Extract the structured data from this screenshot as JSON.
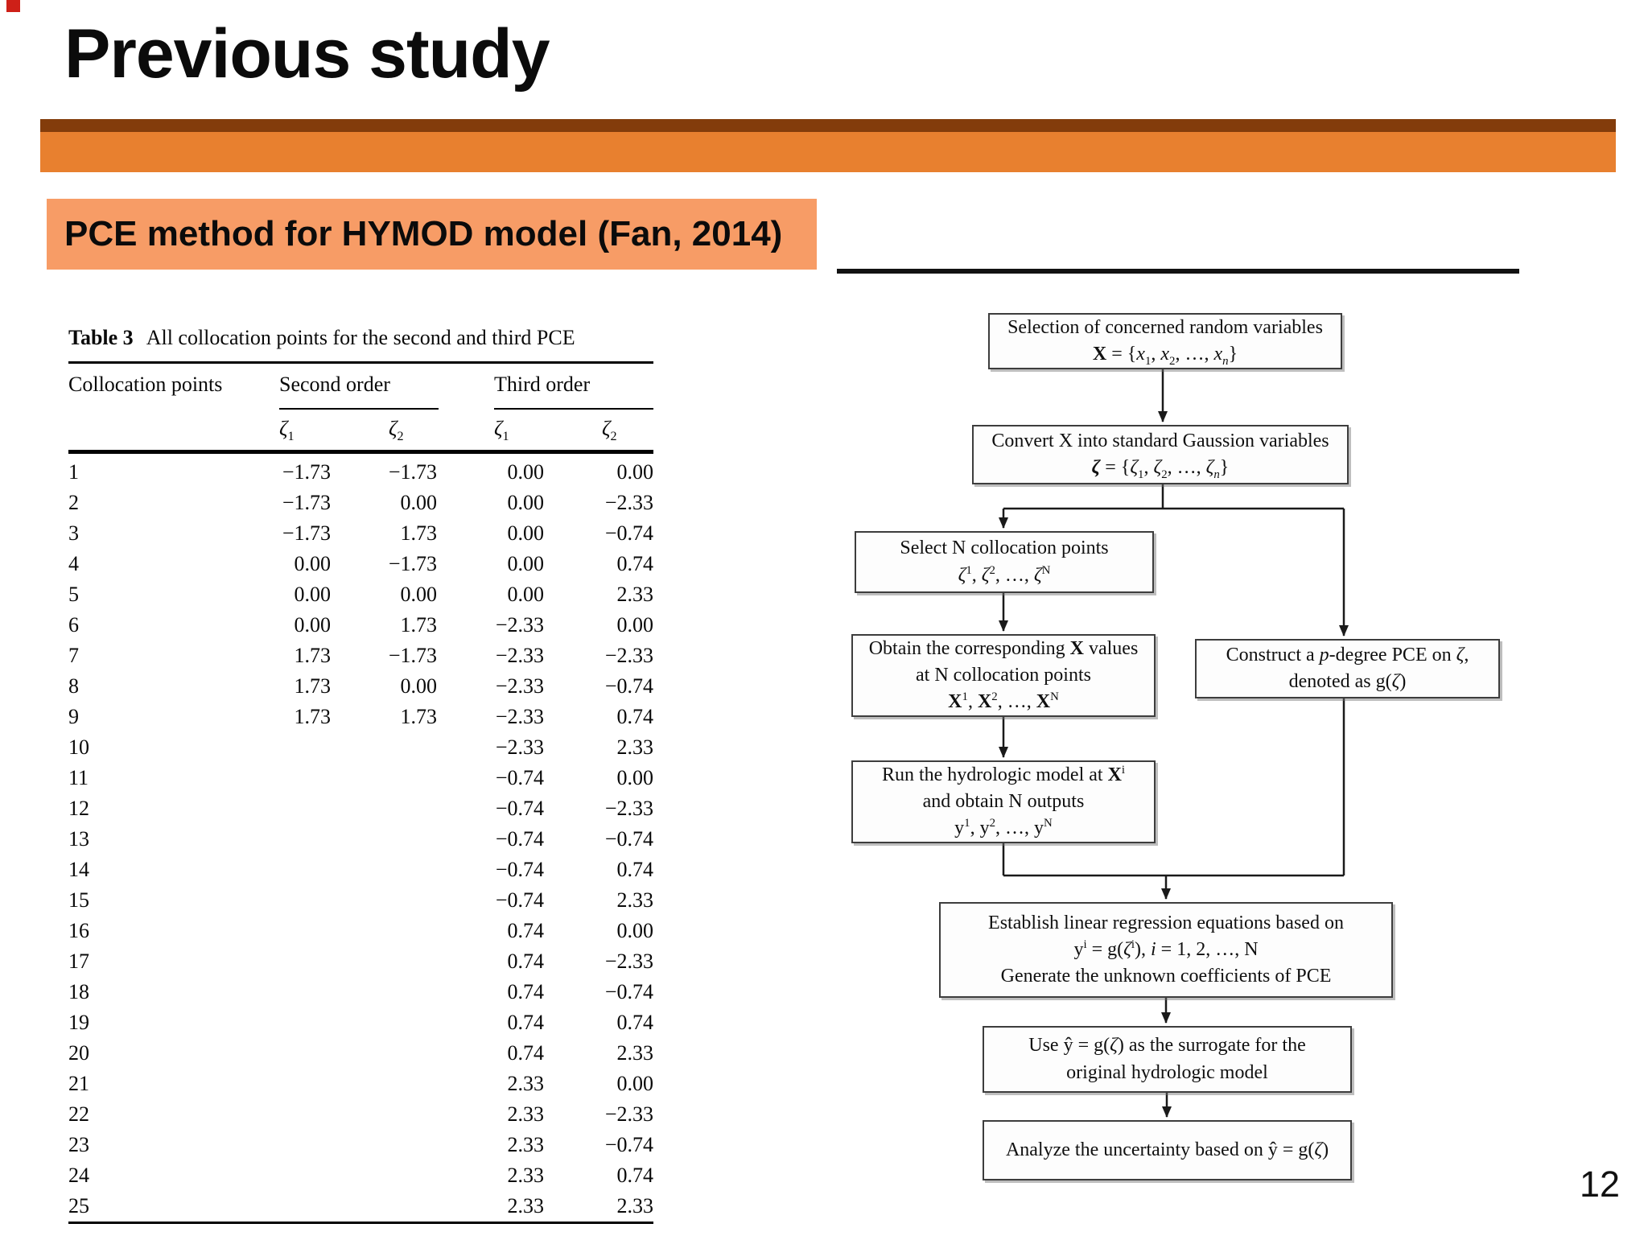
{
  "slide": {
    "title": "Previous study",
    "subtitle": "PCE method for HYMOD model (Fan, 2014)",
    "page_number": "12",
    "colors": {
      "accent_dark": "#833C0B",
      "accent_orange": "#E8802F",
      "subtitle_bg": "#F79C66",
      "corner_mark": "#CE2018"
    }
  },
  "table": {
    "caption_label": "Table 3",
    "caption_text": "All collocation points for the second and third PCE",
    "col_header": "Collocation points",
    "group_headers": [
      "Second order",
      "Third order"
    ],
    "sub_headers_html": [
      "<i>ζ</i><sub>1</sub>",
      "<i>ζ</i><sub>2</sub>",
      "<i>ζ</i><sub>1</sub>",
      "<i>ζ</i><sub>2</sub>"
    ],
    "rows": [
      [
        "1",
        "−1.73",
        "−1.73",
        "0.00",
        "0.00"
      ],
      [
        "2",
        "−1.73",
        "0.00",
        "0.00",
        "−2.33"
      ],
      [
        "3",
        "−1.73",
        "1.73",
        "0.00",
        "−0.74"
      ],
      [
        "4",
        "0.00",
        "−1.73",
        "0.00",
        "0.74"
      ],
      [
        "5",
        "0.00",
        "0.00",
        "0.00",
        "2.33"
      ],
      [
        "6",
        "0.00",
        "1.73",
        "−2.33",
        "0.00"
      ],
      [
        "7",
        "1.73",
        "−1.73",
        "−2.33",
        "−2.33"
      ],
      [
        "8",
        "1.73",
        "0.00",
        "−2.33",
        "−0.74"
      ],
      [
        "9",
        "1.73",
        "1.73",
        "−2.33",
        "0.74"
      ],
      [
        "10",
        "",
        "",
        "−2.33",
        "2.33"
      ],
      [
        "11",
        "",
        "",
        "−0.74",
        "0.00"
      ],
      [
        "12",
        "",
        "",
        "−0.74",
        "−2.33"
      ],
      [
        "13",
        "",
        "",
        "−0.74",
        "−0.74"
      ],
      [
        "14",
        "",
        "",
        "−0.74",
        "0.74"
      ],
      [
        "15",
        "",
        "",
        "−0.74",
        "2.33"
      ],
      [
        "16",
        "",
        "",
        "0.74",
        "0.00"
      ],
      [
        "17",
        "",
        "",
        "0.74",
        "−2.33"
      ],
      [
        "18",
        "",
        "",
        "0.74",
        "−0.74"
      ],
      [
        "19",
        "",
        "",
        "0.74",
        "0.74"
      ],
      [
        "20",
        "",
        "",
        "0.74",
        "2.33"
      ],
      [
        "21",
        "",
        "",
        "2.33",
        "0.00"
      ],
      [
        "22",
        "",
        "",
        "2.33",
        "−2.33"
      ],
      [
        "23",
        "",
        "",
        "2.33",
        "−0.74"
      ],
      [
        "24",
        "",
        "",
        "2.33",
        "0.74"
      ],
      [
        "25",
        "",
        "",
        "2.33",
        "2.33"
      ]
    ]
  },
  "flowchart": {
    "nodes": {
      "select_variables": {
        "html": "Selection of concerned random variables<br><b>X</b> = {<i>x</i><sub>1</sub>, <i>x</i><sub>2</sub>, …, <i>x</i><sub><i>n</i></sub>}"
      },
      "convert_gaussian": {
        "html": "Convert X into standard Gaussion variables<br><b><i>ζ</i></b> = {<i>ζ</i><sub>1</sub>, <i>ζ</i><sub>2</sub>, …, <i>ζ</i><sub><i>n</i></sub>}"
      },
      "select_collocation": {
        "html": "Select N collocation points<br><i>ζ</i><sup>1</sup>, <i>ζ</i><sup>2</sup>, …, <i>ζ</i><sup>N</sup>"
      },
      "obtain_x": {
        "html": "Obtain the corresponding <b>X</b> values<br>at N collocation points<br><b>X</b><sup>1</sup>, <b>X</b><sup>2</sup>, …, <b>X</b><sup>N</sup>"
      },
      "construct_pce": {
        "html": "Construct a <i>p</i>-degree PCE on <i>ζ</i>,<br>denoted as g(<i>ζ</i>)"
      },
      "run_model": {
        "html": "Run the hydrologic model at <b>X</b><sup>i</sup><br>and obtain N outputs<br>y<sup>1</sup>, y<sup>2</sup>, …, y<sup>N</sup>"
      },
      "establish_regression": {
        "html": "Establish linear regression equations based on<br>y<sup>i</sup> = g(<i>ζ</i><sup>i</sup>), <i>i</i> = 1, 2, …, N<br>Generate the unknown coefficients of PCE"
      },
      "use_surrogate": {
        "html": "Use ŷ = g(<i>ζ</i>) as the surrogate for the<br>original hydrologic model"
      },
      "analyze_uncertainty": {
        "html": "Analyze the uncertainty based on ŷ = g(<i>ζ</i>)"
      }
    }
  }
}
